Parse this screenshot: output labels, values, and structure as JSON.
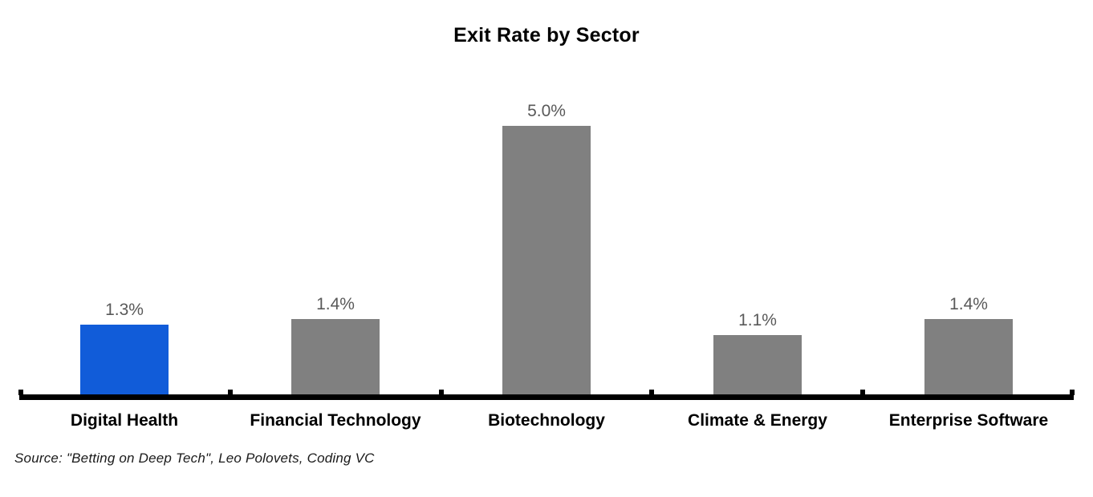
{
  "title": "Exit Rate by Sector",
  "source_note": "Source: \"Betting on Deep Tech\", Leo Polovets, Coding VC",
  "chart_data": {
    "type": "bar",
    "title": "Exit Rate by Sector",
    "categories": [
      "Digital Health",
      "Financial Technology",
      "Biotechnology",
      "Climate & Energy",
      "Enterprise Software"
    ],
    "values": [
      1.3,
      1.4,
      5.0,
      1.1,
      1.4
    ],
    "value_labels": [
      "1.3%",
      "1.4%",
      "5.0%",
      "1.1%",
      "1.4%"
    ],
    "xlabel": "",
    "ylabel": "",
    "ylim": [
      0,
      5.5
    ],
    "grid": false,
    "legend": false,
    "y_axis_shown": false,
    "highlight_index": 0,
    "colors": {
      "highlight_bar": "#115cd9",
      "default_bar": "#808080",
      "value_label": "#595959",
      "axis": "#000000"
    }
  }
}
